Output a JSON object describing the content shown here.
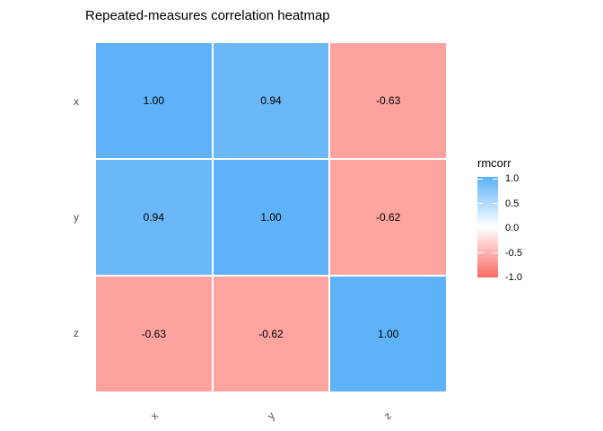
{
  "title": "Repeated-measures correlation heatmap",
  "chart_data": {
    "type": "heatmap",
    "title": "Repeated-measures correlation heatmap",
    "rows": [
      "x",
      "y",
      "z"
    ],
    "columns": [
      "x",
      "y",
      "z"
    ],
    "values": [
      [
        1.0,
        0.94,
        -0.63
      ],
      [
        0.94,
        1.0,
        -0.62
      ],
      [
        -0.63,
        -0.62,
        1.0
      ]
    ],
    "cell_labels": [
      [
        "1.00",
        "0.94",
        "-0.63"
      ],
      [
        "0.94",
        "1.00",
        "-0.62"
      ],
      [
        "-0.63",
        "-0.62",
        "1.00"
      ]
    ],
    "cell_colors": [
      [
        "#5EB2F9",
        "#6BB8F8",
        "#FCA39F"
      ],
      [
        "#6BB8F8",
        "#5EB2F9",
        "#FCA4A0"
      ],
      [
        "#FCA39F",
        "#FCA4A0",
        "#5EB2F9"
      ]
    ],
    "x_axis_angle_deg": 45,
    "grid": "off",
    "legend": {
      "title": "rmcorr",
      "position": "right",
      "range": [
        -1.0,
        1.0
      ],
      "ticks": [
        "1.0",
        "0.5",
        "0.0",
        "-0.5",
        "-1.0"
      ],
      "gradient_high": "#5EB2F9",
      "gradient_mid": "#FFFFFF",
      "gradient_low": "#F96B64"
    }
  }
}
